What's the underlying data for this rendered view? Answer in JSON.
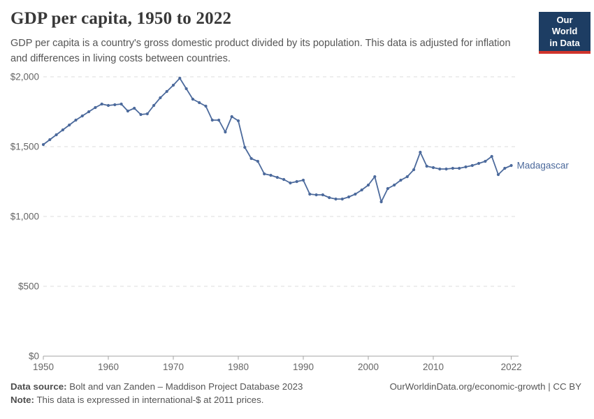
{
  "header": {
    "title": "GDP per capita, 1950 to 2022",
    "subtitle": "GDP per capita is a country's gross domestic product divided by its population. This data is adjusted for inflation and differences in living costs between countries."
  },
  "logo": {
    "line1": "Our World",
    "line2": "in Data",
    "bg_color": "#1d3d63",
    "bar_color": "#d0342c"
  },
  "footer": {
    "source_label": "Data source:",
    "source_text": " Bolt and van Zanden – Maddison Project Database 2023",
    "link_text": "OurWorldinData.org/economic-growth | CC BY",
    "note_label": "Note:",
    "note_text": " This data is expressed in international-$ at 2011 prices."
  },
  "chart_data": {
    "type": "line",
    "title": "GDP per capita, 1950 to 2022",
    "entity_label": "Madagascar",
    "unit": "international-$ at 2011 prices",
    "xlim": [
      1950,
      2022
    ],
    "ylim": [
      0,
      2000
    ],
    "grid": "horizontal-dashed",
    "legend_position": "end-of-line-label",
    "line_color": "#4c6a9c",
    "label_color": "#4c6a9c",
    "grid_color": "#dcdcdc",
    "axis_color": "#a3a3a3",
    "tick_text_color": "#666666",
    "x_ticks": {
      "values": [
        1950,
        1960,
        1970,
        1980,
        1990,
        2000,
        2010,
        2022
      ],
      "labels": [
        "1950",
        "1960",
        "1970",
        "1980",
        "1990",
        "2000",
        "2010",
        "2022"
      ]
    },
    "y_ticks": {
      "values": [
        0,
        500,
        1000,
        1500,
        2000
      ],
      "labels": [
        "$0",
        "$500",
        "$1,000",
        "$1,500",
        "$2,000"
      ]
    },
    "points": [
      [
        1950,
        1515
      ],
      [
        1951,
        1550
      ],
      [
        1952,
        1585
      ],
      [
        1953,
        1620
      ],
      [
        1954,
        1655
      ],
      [
        1955,
        1690
      ],
      [
        1956,
        1720
      ],
      [
        1957,
        1750
      ],
      [
        1958,
        1780
      ],
      [
        1959,
        1805
      ],
      [
        1960,
        1795
      ],
      [
        1961,
        1800
      ],
      [
        1962,
        1805
      ],
      [
        1963,
        1755
      ],
      [
        1964,
        1775
      ],
      [
        1965,
        1730
      ],
      [
        1966,
        1735
      ],
      [
        1967,
        1795
      ],
      [
        1968,
        1850
      ],
      [
        1969,
        1895
      ],
      [
        1970,
        1940
      ],
      [
        1971,
        1990
      ],
      [
        1972,
        1915
      ],
      [
        1973,
        1840
      ],
      [
        1974,
        1815
      ],
      [
        1975,
        1790
      ],
      [
        1976,
        1690
      ],
      [
        1977,
        1690
      ],
      [
        1978,
        1605
      ],
      [
        1979,
        1715
      ],
      [
        1980,
        1685
      ],
      [
        1981,
        1495
      ],
      [
        1982,
        1415
      ],
      [
        1983,
        1395
      ],
      [
        1984,
        1305
      ],
      [
        1985,
        1295
      ],
      [
        1986,
        1280
      ],
      [
        1987,
        1265
      ],
      [
        1988,
        1240
      ],
      [
        1989,
        1250
      ],
      [
        1990,
        1260
      ],
      [
        1991,
        1160
      ],
      [
        1992,
        1155
      ],
      [
        1993,
        1155
      ],
      [
        1994,
        1135
      ],
      [
        1995,
        1125
      ],
      [
        1996,
        1125
      ],
      [
        1997,
        1140
      ],
      [
        1998,
        1160
      ],
      [
        1999,
        1190
      ],
      [
        2000,
        1225
      ],
      [
        2001,
        1285
      ],
      [
        2002,
        1105
      ],
      [
        2003,
        1200
      ],
      [
        2004,
        1225
      ],
      [
        2005,
        1260
      ],
      [
        2006,
        1285
      ],
      [
        2007,
        1335
      ],
      [
        2008,
        1460
      ],
      [
        2009,
        1360
      ],
      [
        2010,
        1350
      ],
      [
        2011,
        1340
      ],
      [
        2012,
        1340
      ],
      [
        2013,
        1345
      ],
      [
        2014,
        1345
      ],
      [
        2015,
        1355
      ],
      [
        2016,
        1365
      ],
      [
        2017,
        1380
      ],
      [
        2018,
        1395
      ],
      [
        2019,
        1430
      ],
      [
        2020,
        1300
      ],
      [
        2021,
        1345
      ],
      [
        2022,
        1365
      ]
    ]
  }
}
